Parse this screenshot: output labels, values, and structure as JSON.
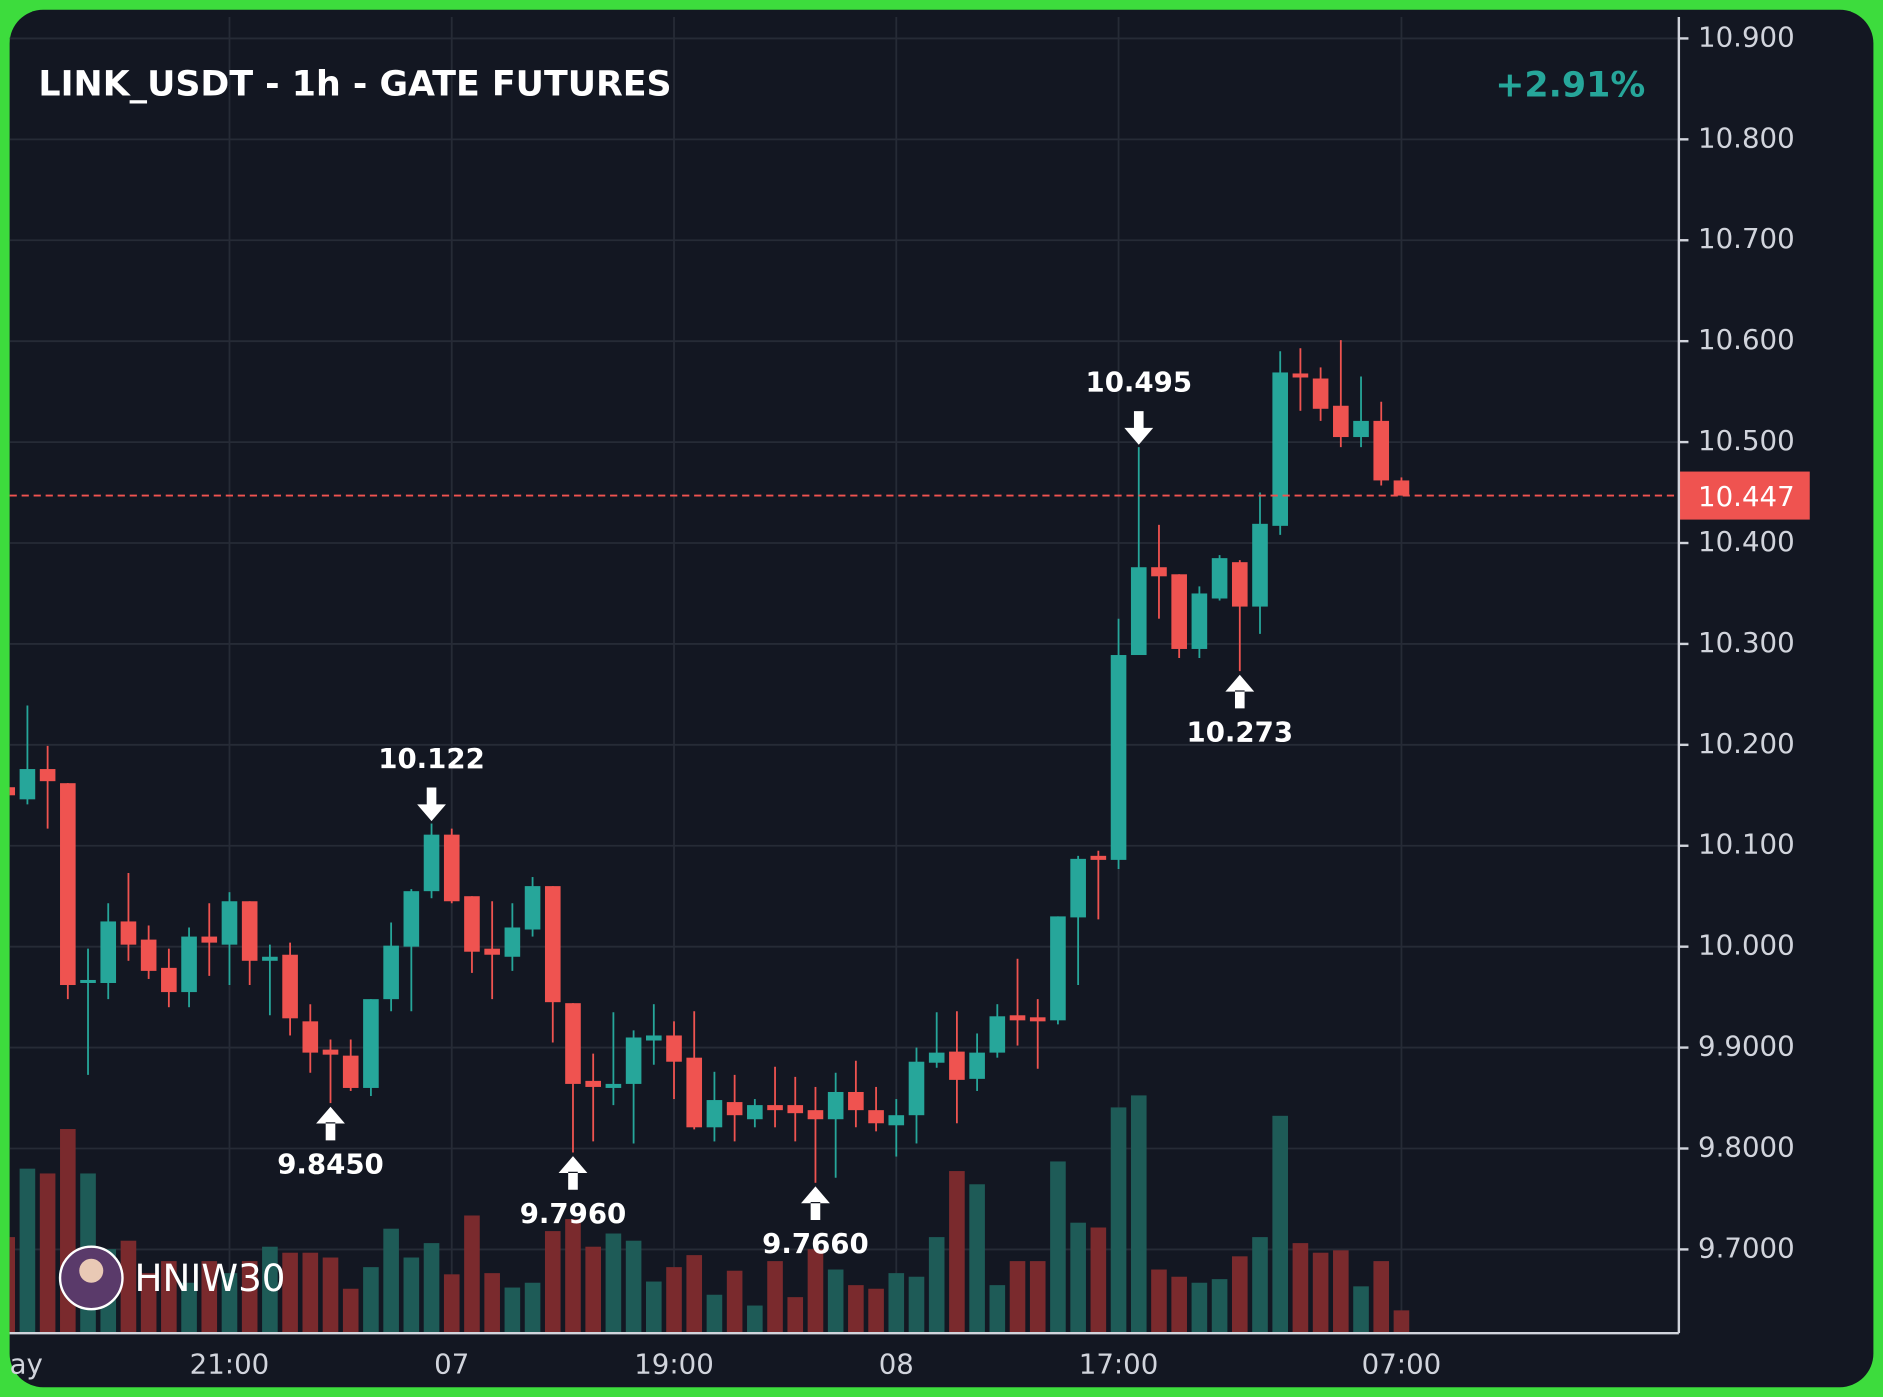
{
  "chart_data": {
    "type": "candlestick",
    "title": "LINK_USDT - 1h - GATE FUTURES",
    "change": "+2.91%",
    "watermark": "HNIW30",
    "up_color": "#26a69a",
    "down_color": "#ef5350",
    "grid": true,
    "x": [
      "ay",
      null,
      null,
      null,
      null,
      null,
      null,
      null,
      null,
      null,
      null,
      "21:00",
      null,
      null,
      null,
      null,
      null,
      null,
      null,
      null,
      null,
      null,
      "07",
      null,
      null,
      null,
      null,
      null,
      null,
      null,
      null,
      null,
      null,
      "19:00",
      null,
      null,
      null,
      null,
      null,
      null,
      null,
      null,
      null,
      null,
      "08",
      null,
      null,
      null,
      null,
      null,
      null,
      null,
      null,
      null,
      null,
      "17:00",
      null,
      null,
      null,
      null,
      null,
      null,
      null,
      null,
      null,
      null,
      null,
      null,
      null,
      "07:00"
    ],
    "open": [
      10.158,
      10.146,
      10.176,
      10.162,
      9.964,
      9.964,
      10.025,
      10.007,
      9.979,
      9.955,
      10.01,
      10.002,
      10.045,
      9.986,
      9.992,
      9.926,
      9.898,
      9.892,
      9.86,
      9.948,
      10.0,
      10.055,
      10.111,
      10.05,
      9.998,
      9.99,
      10.017,
      10.06,
      9.944,
      9.867,
      9.86,
      9.864,
      9.907,
      9.912,
      9.89,
      9.821,
      9.846,
      9.829,
      9.843,
      9.843,
      9.838,
      9.829,
      9.856,
      9.838,
      9.823,
      9.833,
      9.885,
      9.896,
      9.869,
      9.895,
      9.932,
      9.93,
      9.927,
      10.029,
      10.09,
      10.086,
      10.289,
      10.376,
      10.369,
      10.295,
      10.345,
      10.381,
      10.337,
      10.417,
      10.568,
      10.563,
      10.536,
      10.505,
      10.521,
      10.462
    ],
    "high": [
      10.16,
      10.239,
      10.199,
      10.162,
      9.998,
      10.043,
      10.073,
      10.021,
      9.998,
      10.019,
      10.043,
      10.054,
      10.045,
      10.002,
      10.004,
      9.943,
      9.908,
      9.908,
      9.948,
      10.024,
      10.057,
      10.122,
      10.117,
      10.05,
      10.045,
      10.043,
      10.069,
      10.06,
      9.944,
      9.894,
      9.935,
      9.917,
      9.943,
      9.926,
      9.936,
      9.876,
      9.873,
      9.849,
      9.881,
      9.871,
      9.861,
      9.875,
      9.887,
      9.861,
      9.849,
      9.9,
      9.935,
      9.936,
      9.914,
      9.943,
      9.988,
      9.948,
      10.03,
      10.09,
      10.095,
      10.325,
      10.495,
      10.418,
      10.369,
      10.357,
      10.388,
      10.383,
      10.45,
      10.59,
      10.593,
      10.574,
      10.601,
      10.565,
      10.54,
      10.465
    ],
    "low": [
      10.15,
      10.141,
      10.117,
      9.948,
      9.873,
      9.948,
      9.986,
      9.968,
      9.94,
      9.94,
      9.971,
      9.962,
      9.962,
      9.932,
      9.912,
      9.875,
      9.845,
      9.857,
      9.852,
      9.936,
      9.936,
      10.048,
      10.043,
      9.974,
      9.948,
      9.976,
      10.01,
      9.905,
      9.796,
      9.807,
      9.843,
      9.805,
      9.883,
      9.849,
      9.819,
      9.807,
      9.807,
      9.821,
      9.821,
      9.807,
      9.766,
      9.771,
      9.821,
      9.817,
      9.792,
      9.805,
      9.88,
      9.825,
      9.857,
      9.89,
      9.902,
      9.879,
      9.923,
      9.962,
      10.027,
      10.077,
      10.289,
      10.325,
      10.286,
      10.286,
      10.343,
      10.273,
      10.31,
      10.408,
      10.531,
      10.521,
      10.495,
      10.495,
      10.457,
      10.447
    ],
    "close": [
      10.15,
      10.176,
      10.164,
      9.962,
      9.967,
      10.025,
      10.002,
      9.976,
      9.955,
      10.01,
      10.004,
      10.045,
      9.986,
      9.99,
      9.929,
      9.895,
      9.893,
      9.86,
      9.948,
      10.001,
      10.055,
      10.111,
      10.045,
      9.995,
      9.992,
      10.019,
      10.06,
      9.945,
      9.864,
      9.861,
      9.864,
      9.91,
      9.912,
      9.886,
      9.821,
      9.848,
      9.833,
      9.843,
      9.838,
      9.835,
      9.829,
      9.856,
      9.838,
      9.825,
      9.833,
      9.886,
      9.895,
      9.868,
      9.895,
      9.931,
      9.927,
      9.926,
      10.03,
      10.087,
      10.086,
      10.289,
      10.376,
      10.367,
      10.295,
      10.35,
      10.385,
      10.337,
      10.419,
      10.569,
      10.564,
      10.533,
      10.505,
      10.521,
      10.462,
      10.447
    ],
    "volume": [
      80,
      137,
      133,
      170,
      133,
      70,
      77,
      50,
      60,
      42,
      60,
      50,
      60,
      72,
      67,
      67,
      63,
      37,
      55,
      87,
      63,
      75,
      49,
      98,
      50,
      38,
      42,
      85,
      95,
      72,
      83,
      77,
      43,
      55,
      65,
      32,
      52,
      23,
      60,
      30,
      70,
      53,
      40,
      37,
      50,
      47,
      80,
      135,
      124,
      40,
      60,
      60,
      143,
      92,
      88,
      188,
      198,
      53,
      47,
      42,
      45,
      64,
      80,
      181,
      75,
      67,
      69,
      39,
      60,
      19
    ],
    "ylim": [
      9.617,
      10.926
    ],
    "yticks": [
      {
        "value": 10.9,
        "label": "10.900"
      },
      {
        "value": 10.8,
        "label": "10.800"
      },
      {
        "value": 10.7,
        "label": "10.700"
      },
      {
        "value": 10.6,
        "label": "10.600"
      },
      {
        "value": 10.5,
        "label": "10.500"
      },
      {
        "value": 10.4,
        "label": "10.400"
      },
      {
        "value": 10.3,
        "label": "10.300"
      },
      {
        "value": 10.2,
        "label": "10.200"
      },
      {
        "value": 10.1,
        "label": "10.100"
      },
      {
        "value": 10.0,
        "label": "10.000"
      },
      {
        "value": 9.9,
        "label": "9.9000"
      },
      {
        "value": 9.8,
        "label": "9.8000"
      },
      {
        "value": 9.7,
        "label": "9.7000"
      }
    ],
    "last_price": 10.447,
    "annotations": [
      {
        "text": "10.122",
        "value": 10.122,
        "kind": "high"
      },
      {
        "text": "9.8450",
        "value": 9.845,
        "kind": "low"
      },
      {
        "text": "9.7960",
        "value": 9.796,
        "kind": "low"
      },
      {
        "text": "9.7660",
        "value": 9.766,
        "kind": "low"
      },
      {
        "text": "10.495",
        "value": 10.495,
        "kind": "high"
      },
      {
        "text": "10.273",
        "value": 10.273,
        "kind": "low"
      }
    ]
  }
}
